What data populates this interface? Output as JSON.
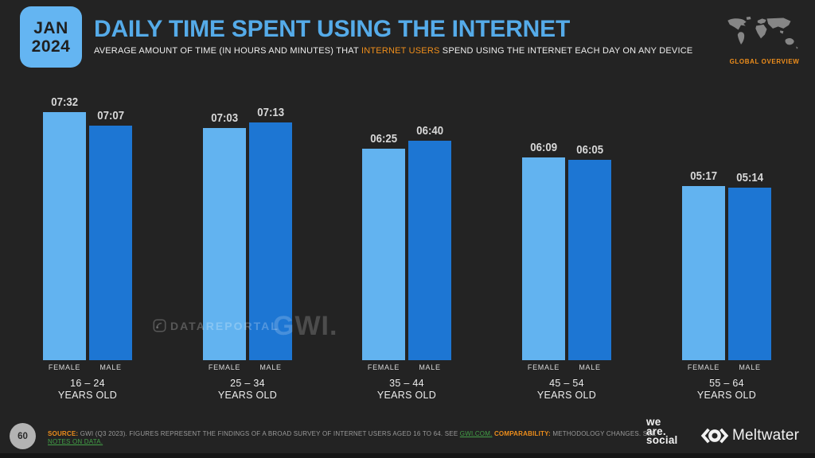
{
  "header": {
    "date_badge": {
      "month": "JAN",
      "year": "2024",
      "bg": "#64b5f2"
    },
    "title": "DAILY TIME SPENT USING THE INTERNET",
    "subtitle": {
      "before": "AVERAGE AMOUNT OF TIME (IN HOURS AND MINUTES) THAT ",
      "highlight": "INTERNET USERS",
      "after": " SPEND USING THE INTERNET EACH DAY ON ANY DEVICE"
    },
    "scope_label": "GLOBAL OVERVIEW"
  },
  "chart_data": {
    "type": "bar",
    "title": "Daily time spent using the internet by age group and gender",
    "unit": "hours:minutes per day",
    "ylim_minutes": [
      0,
      452
    ],
    "grid": false,
    "series_labels": {
      "female": "FEMALE",
      "male": "MALE"
    },
    "colors": {
      "female": "#62b3f0",
      "male": "#1d76d3"
    },
    "groups": [
      {
        "age_range": "16 – 24",
        "age_suffix": "YEARS OLD",
        "female": "07:32",
        "male": "07:07"
      },
      {
        "age_range": "25 – 34",
        "age_suffix": "YEARS OLD",
        "female": "07:03",
        "male": "07:13"
      },
      {
        "age_range": "35 – 44",
        "age_suffix": "YEARS OLD",
        "female": "06:25",
        "male": "06:40"
      },
      {
        "age_range": "45 – 54",
        "age_suffix": "YEARS OLD",
        "female": "06:09",
        "male": "06:05"
      },
      {
        "age_range": "55 – 64",
        "age_suffix": "YEARS OLD",
        "female": "05:17",
        "male": "05:14"
      }
    ]
  },
  "watermarks": {
    "datareportal": "DATAREPORTAL",
    "gwi": "GWI."
  },
  "footer": {
    "page_number": "60",
    "source_segments": [
      {
        "text": "SOURCE:",
        "style": "orange"
      },
      {
        "text": " GWI (Q3 2023). FIGURES REPRESENT THE FINDINGS OF A BROAD SURVEY OF INTERNET USERS AGED 16 TO 64. SEE ",
        "style": "gray"
      },
      {
        "text": "GWI.COM.",
        "style": "green"
      },
      {
        "text": " ",
        "style": "gray"
      },
      {
        "text": "COMPARABILITY:",
        "style": "orange"
      },
      {
        "text": " METHODOLOGY CHANGES. SEE ",
        "style": "gray"
      },
      {
        "text": "NOTES ON DATA.",
        "style": "green"
      }
    ],
    "logos": {
      "we_are_social": [
        "we",
        "are.",
        "social"
      ],
      "meltwater": "Meltwater"
    }
  }
}
